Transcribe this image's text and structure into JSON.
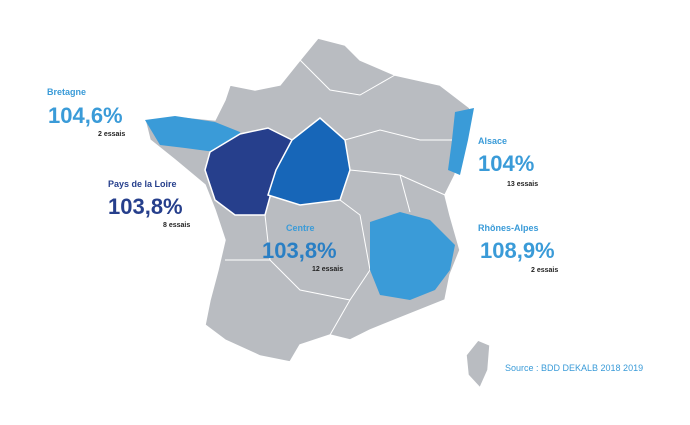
{
  "regions": [
    {
      "name": "Bretagne",
      "value": "104,6%",
      "trials": "2 essais",
      "color": "#3a9bd8"
    },
    {
      "name": "Pays de la Loire",
      "value": "103,8%",
      "trials": "8 essais",
      "color": "#263f8c"
    },
    {
      "name": "Centre",
      "value": "103,8%",
      "trials": "12 essais",
      "color": "#1766b8"
    },
    {
      "name": "Alsace",
      "value": "104%",
      "trials": "13 essais",
      "color": "#3a9bd8"
    },
    {
      "name": "Rhônes-Alpes",
      "value": "108,9%",
      "trials": "2 essais",
      "color": "#3a9bd8"
    }
  ],
  "source": "Source : BDD DEKALB 2018 2019"
}
